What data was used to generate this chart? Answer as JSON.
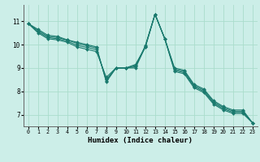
{
  "xlabel": "Humidex (Indice chaleur)",
  "ylabel": "",
  "bg_color": "#cceee8",
  "grid_color": "#aaddcc",
  "line_color": "#1a7a6e",
  "xlim": [
    -0.5,
    23.5
  ],
  "ylim": [
    6.5,
    11.7
  ],
  "xticks": [
    0,
    1,
    2,
    3,
    4,
    5,
    6,
    7,
    8,
    9,
    10,
    11,
    12,
    13,
    14,
    15,
    16,
    17,
    18,
    19,
    20,
    21,
    22,
    23
  ],
  "yticks": [
    7,
    8,
    9,
    10,
    11
  ],
  "series": [
    [
      10.9,
      10.65,
      10.4,
      10.35,
      10.2,
      10.1,
      10.0,
      9.9,
      8.4,
      9.0,
      9.0,
      9.0,
      9.9,
      11.3,
      10.25,
      9.0,
      8.9,
      8.3,
      8.1,
      7.6,
      7.35,
      7.2,
      7.2,
      6.65
    ],
    [
      10.9,
      10.6,
      10.35,
      10.3,
      10.2,
      10.05,
      9.95,
      9.85,
      8.45,
      9.0,
      9.0,
      9.05,
      9.95,
      11.3,
      10.25,
      8.95,
      8.85,
      8.25,
      8.05,
      7.55,
      7.3,
      7.15,
      7.15,
      6.65
    ],
    [
      10.9,
      10.55,
      10.3,
      10.25,
      10.15,
      9.97,
      9.88,
      9.78,
      8.5,
      9.0,
      9.0,
      9.1,
      9.92,
      11.3,
      10.25,
      8.9,
      8.8,
      8.2,
      8.0,
      7.5,
      7.25,
      7.1,
      7.1,
      6.65
    ],
    [
      10.9,
      10.5,
      10.25,
      10.2,
      10.1,
      9.9,
      9.8,
      9.7,
      8.6,
      9.0,
      9.0,
      9.15,
      9.88,
      11.3,
      10.25,
      8.85,
      8.75,
      8.15,
      7.95,
      7.45,
      7.2,
      7.05,
      7.05,
      6.65
    ]
  ]
}
